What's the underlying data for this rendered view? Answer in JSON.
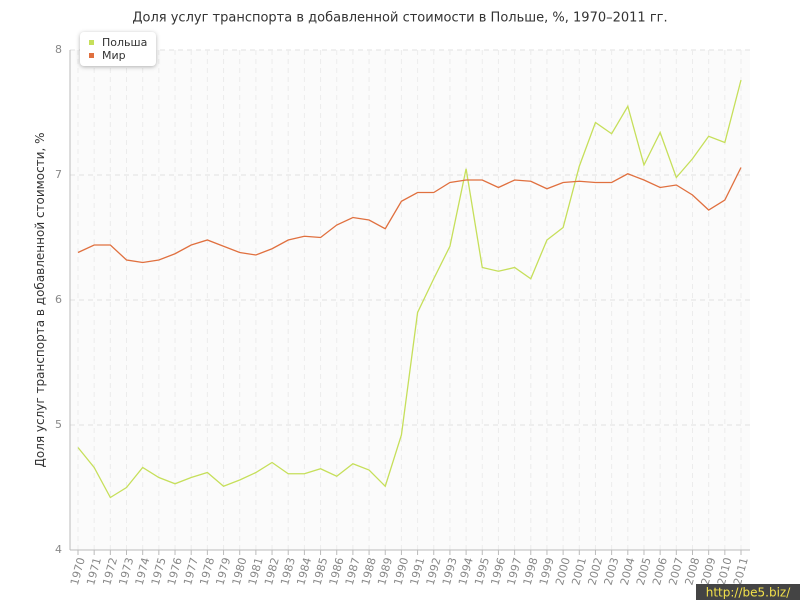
{
  "chart_data": {
    "type": "line",
    "title": "Доля услуг транспорта в добавленной стоимости в Польше, %, 1970–2011 гг.",
    "y_label": "Доля услуг транспорта в добавленной стоимости, %",
    "categories": [
      "1970",
      "1971",
      "1972",
      "1973",
      "1974",
      "1975",
      "1976",
      "1977",
      "1978",
      "1979",
      "1980",
      "1981",
      "1982",
      "1983",
      "1984",
      "1985",
      "1986",
      "1987",
      "1988",
      "1989",
      "1990",
      "1991",
      "1992",
      "1993",
      "1994",
      "1995",
      "1996",
      "1997",
      "1998",
      "1999",
      "2000",
      "2001",
      "2002",
      "2003",
      "2004",
      "2005",
      "2006",
      "2007",
      "2008",
      "2009",
      "2010",
      "2011"
    ],
    "series": [
      {
        "name": "Польша",
        "color": "#c6df5a",
        "values": [
          4.82,
          4.66,
          4.42,
          4.5,
          4.66,
          4.58,
          4.53,
          4.58,
          4.62,
          4.51,
          4.56,
          4.62,
          4.7,
          4.61,
          4.61,
          4.65,
          4.59,
          4.69,
          4.64,
          4.51,
          4.92,
          5.9,
          6.17,
          6.43,
          7.05,
          6.26,
          6.23,
          6.26,
          6.17,
          6.48,
          6.58,
          7.07,
          7.42,
          7.33,
          7.55,
          7.08,
          7.34,
          6.98,
          7.13,
          7.31,
          7.26,
          7.76
        ]
      },
      {
        "name": "Мир",
        "color": "#e0703f",
        "values": [
          6.38,
          6.44,
          6.44,
          6.32,
          6.3,
          6.32,
          6.37,
          6.44,
          6.48,
          6.43,
          6.38,
          6.36,
          6.41,
          6.48,
          6.51,
          6.5,
          6.6,
          6.66,
          6.64,
          6.57,
          6.79,
          6.86,
          6.86,
          6.94,
          6.96,
          6.96,
          6.9,
          6.96,
          6.95,
          6.89,
          6.94,
          6.95,
          6.94,
          6.94,
          7.01,
          6.96,
          6.9,
          6.92,
          6.84,
          6.72,
          6.8,
          7.06
        ]
      }
    ],
    "ylim": [
      4,
      8
    ],
    "yticks": [
      4,
      5,
      6,
      7,
      8
    ],
    "grid": true,
    "legend": "top-left",
    "watermark": "http://be5.biz/"
  }
}
